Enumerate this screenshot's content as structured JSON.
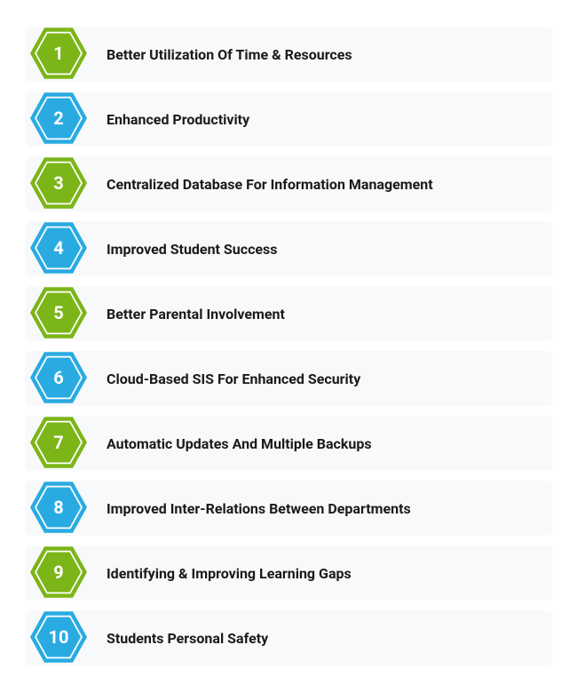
{
  "colors": {
    "green": "#7cb518",
    "blue": "#29abe2",
    "item_bg": "#f8f9fa",
    "text": "#1a1a1a",
    "number_text": "#ffffff"
  },
  "items": [
    {
      "number": "1",
      "color_key": "green",
      "label": "Better Utilization Of Time & Resources"
    },
    {
      "number": "2",
      "color_key": "blue",
      "label": "Enhanced Productivity"
    },
    {
      "number": "3",
      "color_key": "green",
      "label": "Centralized Database For Information Management"
    },
    {
      "number": "4",
      "color_key": "blue",
      "label": "Improved Student Success"
    },
    {
      "number": "5",
      "color_key": "green",
      "label": "Better Parental Involvement"
    },
    {
      "number": "6",
      "color_key": "blue",
      "label": "Cloud-Based SIS For Enhanced Security"
    },
    {
      "number": "7",
      "color_key": "green",
      "label": "Automatic Updates And Multiple Backups"
    },
    {
      "number": "8",
      "color_key": "blue",
      "label": "Improved Inter-Relations Between Departments"
    },
    {
      "number": "9",
      "color_key": "green",
      "label": "Identifying & Improving Learning Gaps"
    },
    {
      "number": "10",
      "color_key": "blue",
      "label": "Students Personal Safety"
    }
  ]
}
